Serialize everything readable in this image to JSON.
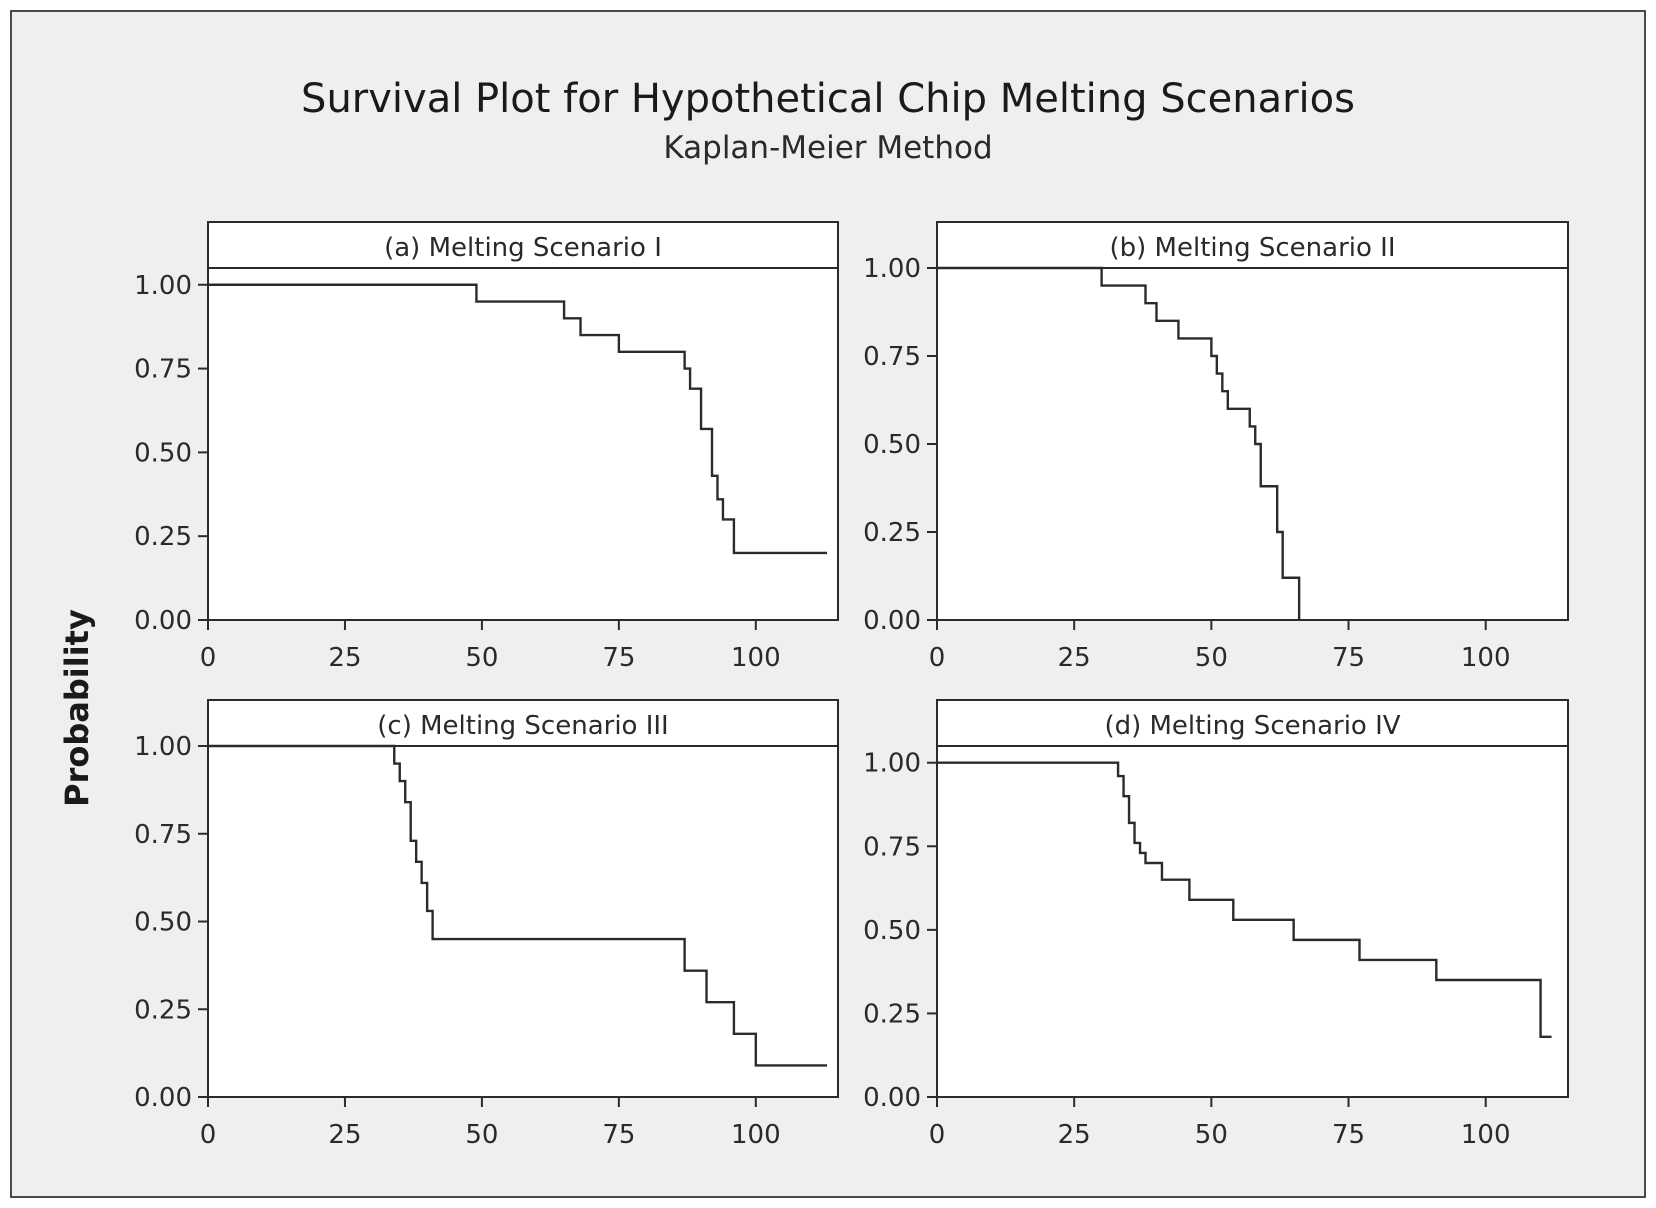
{
  "chart_data": {
    "type": "line",
    "title": "Survival Plot for Hypothetical Chip Melting Scenarios",
    "subtitle": "Kaplan-Meier Method",
    "ylabel": "Probability",
    "colors": {
      "line": "#2b2b2b",
      "panel_bg": "#ffffff",
      "frame_bg": "#efefef"
    },
    "panels": [
      {
        "title": "(a) Melting Scenario I",
        "xlim": [
          0,
          115
        ],
        "ylim": [
          0,
          1.05
        ],
        "xticks": [
          "0",
          "25",
          "50",
          "75",
          "100"
        ],
        "yticks": [
          "0.00",
          "0.25",
          "0.50",
          "0.75",
          "1.00"
        ],
        "steps": [
          [
            0,
            1.0
          ],
          [
            49,
            0.95
          ],
          [
            65,
            0.9
          ],
          [
            68,
            0.85
          ],
          [
            75,
            0.8
          ],
          [
            87,
            0.75
          ],
          [
            88,
            0.69
          ],
          [
            90,
            0.57
          ],
          [
            92,
            0.43
          ],
          [
            93,
            0.36
          ],
          [
            94,
            0.3
          ],
          [
            96,
            0.2
          ],
          [
            113,
            0.2
          ]
        ]
      },
      {
        "title": "(b) Melting Scenario II",
        "xlim": [
          0,
          115
        ],
        "ylim": [
          0,
          1.0
        ],
        "xticks": [
          "0",
          "25",
          "50",
          "75",
          "100"
        ],
        "yticks": [
          "0.00",
          "0.25",
          "0.50",
          "0.75",
          "1.00"
        ],
        "steps": [
          [
            0,
            1.0
          ],
          [
            30,
            0.95
          ],
          [
            38,
            0.9
          ],
          [
            40,
            0.85
          ],
          [
            44,
            0.8
          ],
          [
            50,
            0.75
          ],
          [
            51,
            0.7
          ],
          [
            52,
            0.65
          ],
          [
            53,
            0.6
          ],
          [
            57,
            0.55
          ],
          [
            58,
            0.5
          ],
          [
            59,
            0.38
          ],
          [
            62,
            0.25
          ],
          [
            63,
            0.12
          ],
          [
            66,
            0.0
          ]
        ]
      },
      {
        "title": "(c) Melting Scenario III",
        "xlim": [
          0,
          115
        ],
        "ylim": [
          0,
          1.0
        ],
        "xticks": [
          "0",
          "25",
          "50",
          "75",
          "100"
        ],
        "yticks": [
          "0.00",
          "0.25",
          "0.50",
          "0.75",
          "1.00"
        ],
        "steps": [
          [
            0,
            1.0
          ],
          [
            34,
            0.95
          ],
          [
            35,
            0.9
          ],
          [
            36,
            0.84
          ],
          [
            37,
            0.73
          ],
          [
            38,
            0.67
          ],
          [
            39,
            0.61
          ],
          [
            40,
            0.53
          ],
          [
            41,
            0.45
          ],
          [
            87,
            0.36
          ],
          [
            91,
            0.27
          ],
          [
            96,
            0.18
          ],
          [
            100,
            0.09
          ],
          [
            113,
            0.09
          ]
        ]
      },
      {
        "title": "(d) Melting Scenario IV",
        "xlim": [
          0,
          115
        ],
        "ylim": [
          0,
          1.05
        ],
        "xticks": [
          "0",
          "25",
          "50",
          "75",
          "100"
        ],
        "yticks": [
          "0.00",
          "0.25",
          "0.50",
          "0.75",
          "1.00"
        ],
        "steps": [
          [
            0,
            1.0
          ],
          [
            33,
            0.96
          ],
          [
            34,
            0.9
          ],
          [
            35,
            0.82
          ],
          [
            36,
            0.76
          ],
          [
            37,
            0.73
          ],
          [
            38,
            0.7
          ],
          [
            41,
            0.65
          ],
          [
            46,
            0.59
          ],
          [
            54,
            0.53
          ],
          [
            65,
            0.47
          ],
          [
            77,
            0.41
          ],
          [
            91,
            0.35
          ],
          [
            110,
            0.18
          ],
          [
            112,
            0.18
          ]
        ]
      }
    ]
  }
}
